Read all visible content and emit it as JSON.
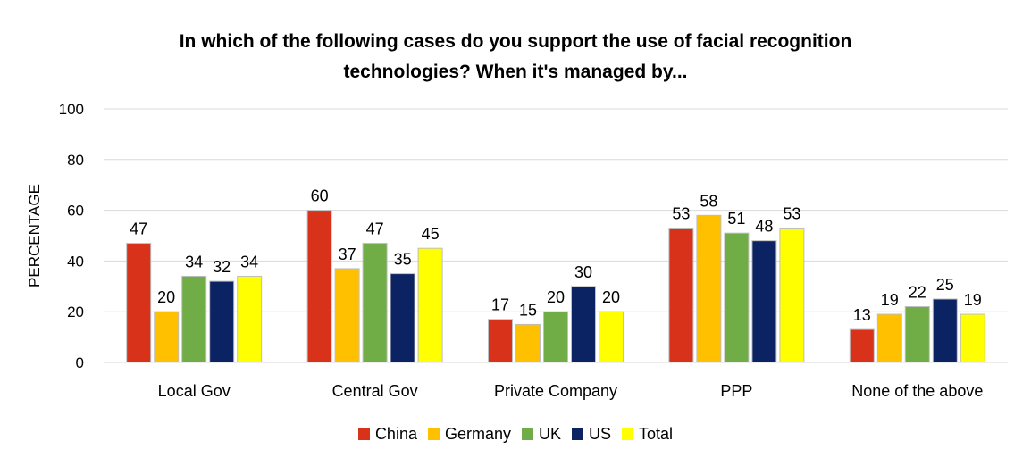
{
  "chart_data": {
    "type": "bar",
    "title_line1": "In which of the following cases do you support the use of facial recognition",
    "title_line2": "technologies? When it's managed by...",
    "ylabel": "PERCENTAGE",
    "xlabel": "",
    "ylim": [
      0,
      100
    ],
    "yticks": [
      "0",
      "20",
      "40",
      "60",
      "80",
      "100"
    ],
    "grid": true,
    "legend_position": "bottom",
    "categories": [
      "Local Gov",
      "Central Gov",
      "Private Company",
      "PPP",
      "None of the above"
    ],
    "series": [
      {
        "name": "China",
        "color": "#d9321a",
        "values": [
          47,
          60,
          17,
          53,
          13
        ]
      },
      {
        "name": "Germany",
        "color": "#ffc000",
        "values": [
          20,
          37,
          15,
          58,
          19
        ]
      },
      {
        "name": "UK",
        "color": "#70ad47",
        "values": [
          34,
          47,
          20,
          51,
          22
        ]
      },
      {
        "name": "US",
        "color": "#0b2263",
        "values": [
          32,
          35,
          30,
          48,
          25
        ]
      },
      {
        "name": "Total",
        "color": "#ffff00",
        "values": [
          34,
          45,
          20,
          53,
          19
        ]
      }
    ]
  }
}
